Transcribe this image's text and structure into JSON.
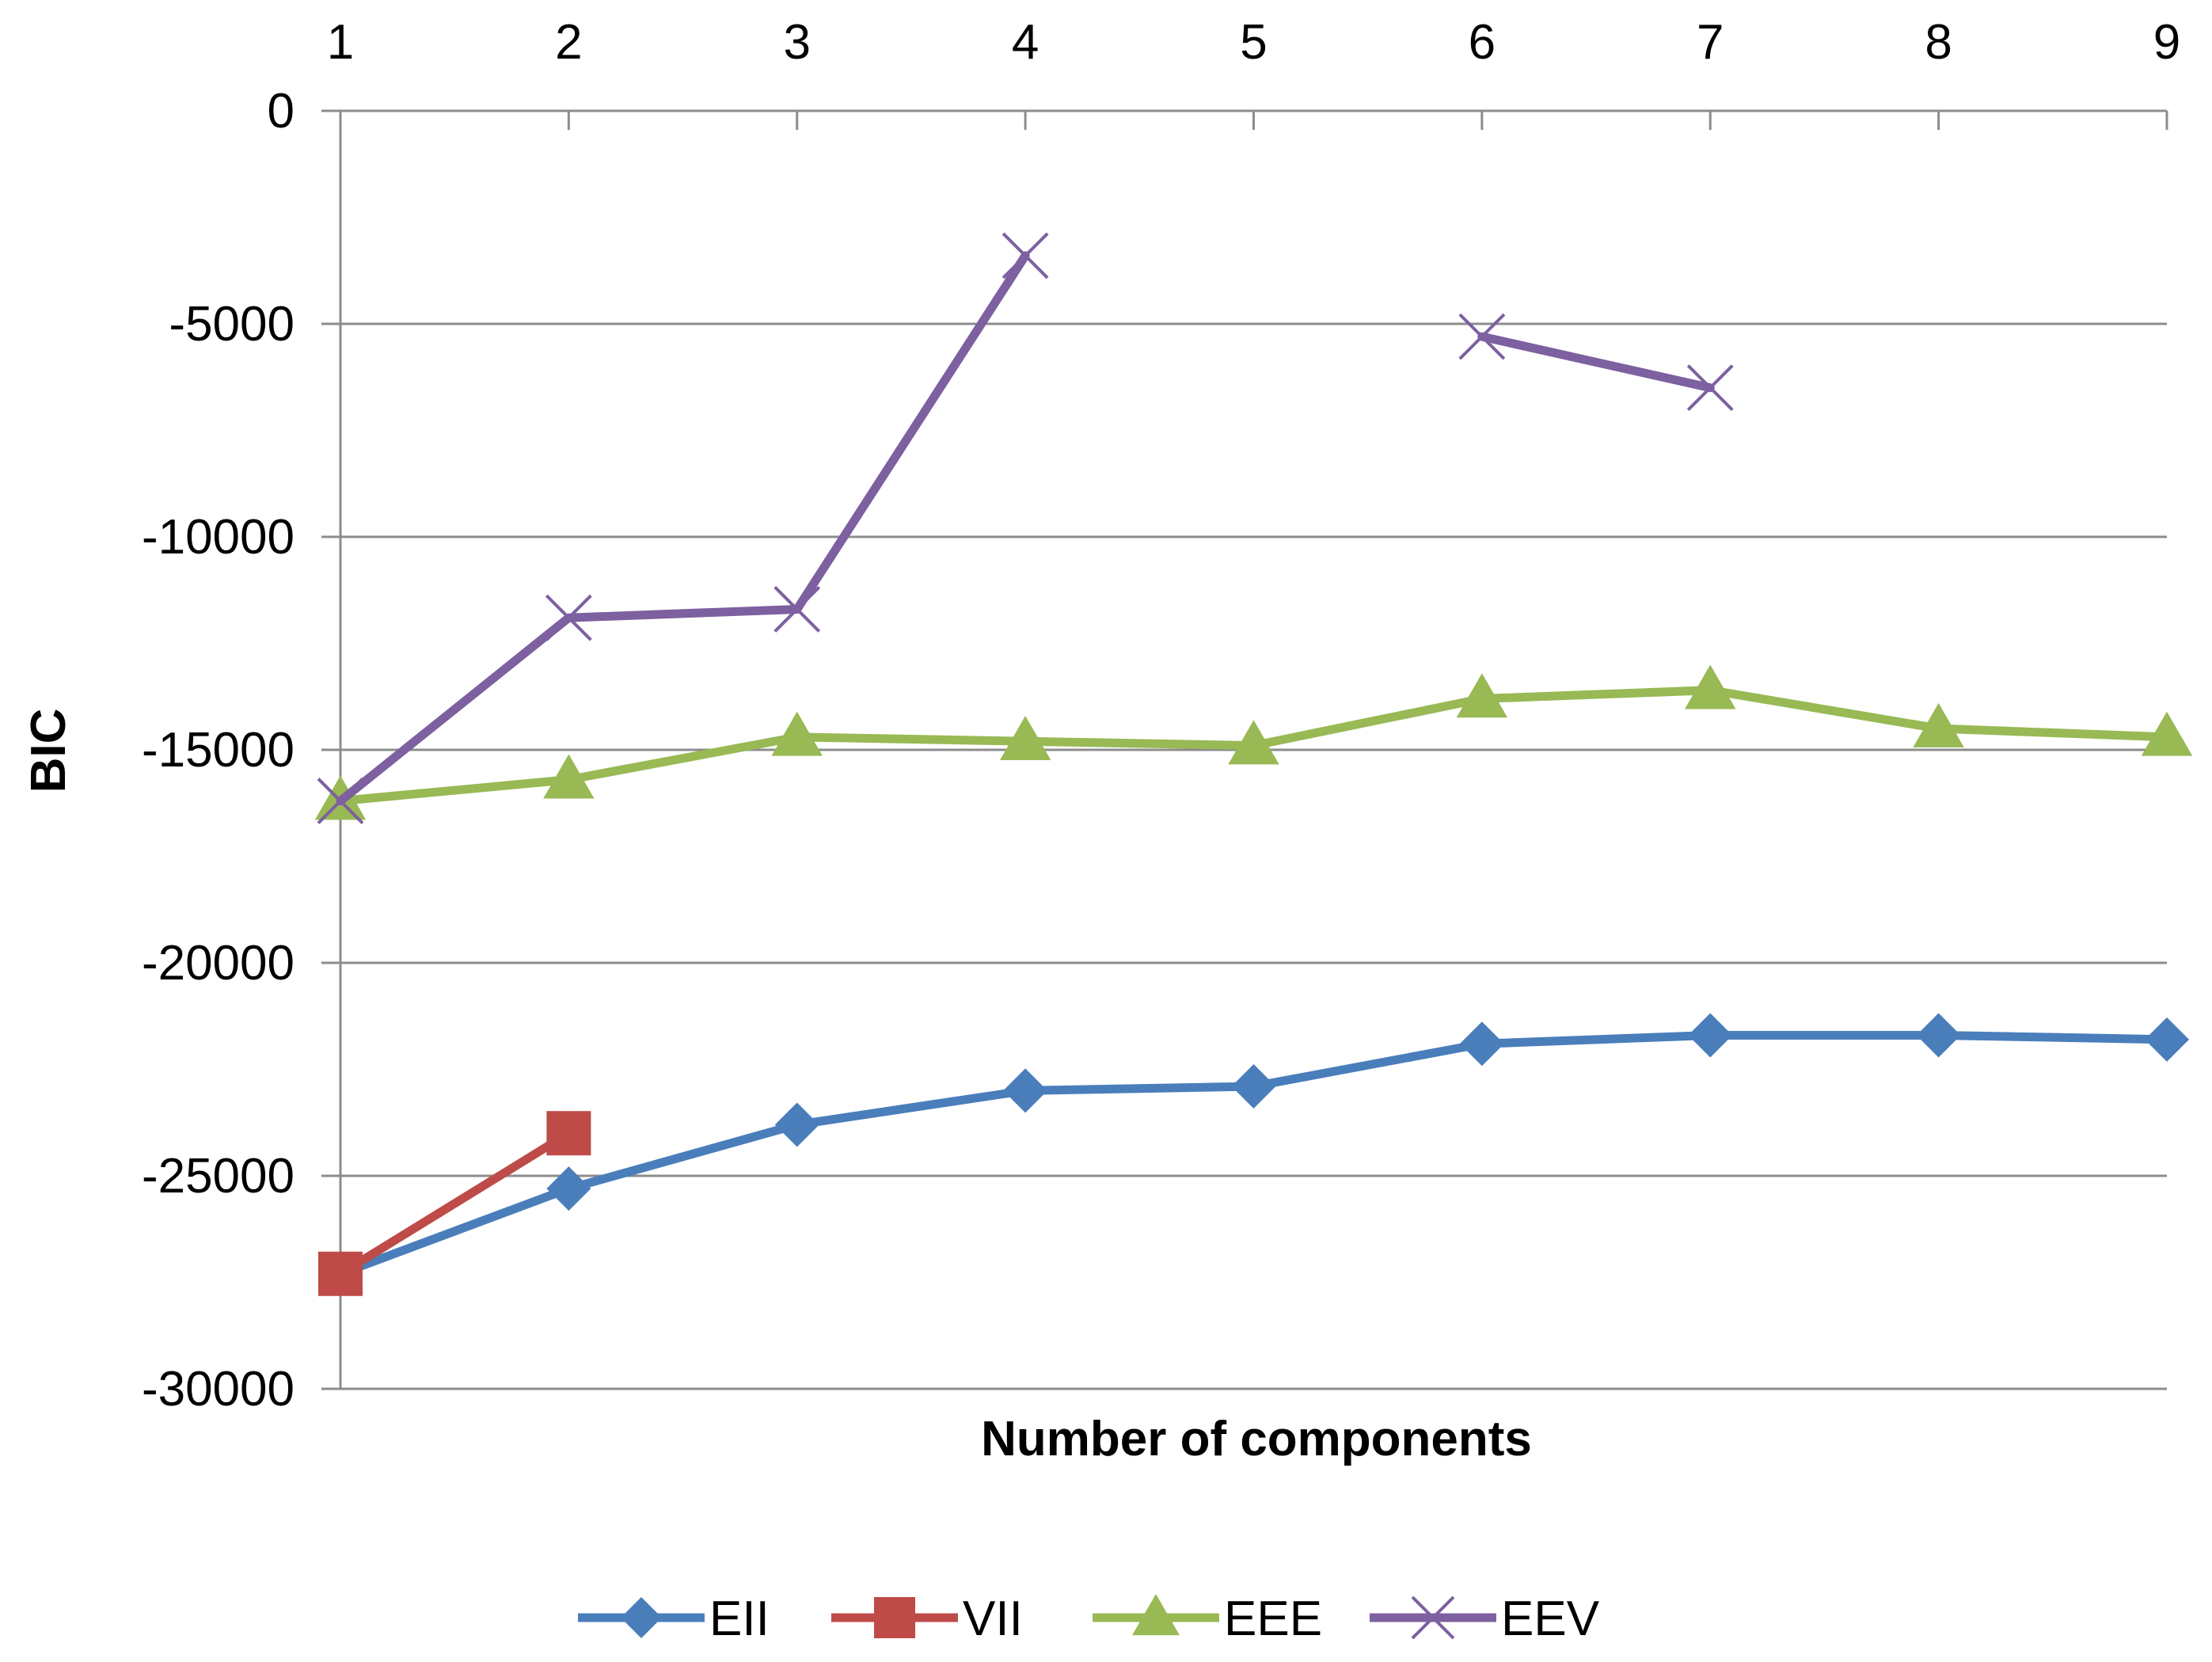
{
  "chart_data": {
    "type": "line",
    "title": "",
    "xlabel": "Number of components",
    "ylabel": "BIC",
    "x": [
      1,
      2,
      3,
      4,
      5,
      6,
      7,
      8,
      9
    ],
    "x_tick_labels": [
      "1",
      "2",
      "3",
      "4",
      "5",
      "6",
      "7",
      "8",
      "9"
    ],
    "xlim": [
      1,
      9
    ],
    "x_axis_position": "top",
    "ylim": [
      -30000,
      0
    ],
    "y_ticks": [
      0,
      -5000,
      -10000,
      -15000,
      -20000,
      -25000,
      -30000
    ],
    "y_tick_labels": [
      "0",
      "-5000",
      "-10000",
      "-15000",
      "-20000",
      "-25000",
      "-30000"
    ],
    "grid": true,
    "legend_position": "bottom",
    "series": [
      {
        "name": "EII",
        "color": "#4a7ebb",
        "marker": "diamond",
        "values": [
          -27300,
          -25300,
          -23800,
          -23000,
          -22900,
          -21900,
          -21700,
          -21700,
          -21800
        ]
      },
      {
        "name": "VII",
        "color": "#be4b48",
        "marker": "square",
        "values": [
          -27300,
          -24000,
          null,
          null,
          null,
          null,
          null,
          null,
          null
        ]
      },
      {
        "name": "EEE",
        "color": "#98b954",
        "marker": "triangle",
        "values": [
          -16200,
          -15700,
          -14700,
          -14800,
          -14900,
          -13800,
          -13600,
          -14500,
          -14700
        ]
      },
      {
        "name": "EEV",
        "color": "#7d60a0",
        "marker": "x",
        "values": [
          -16200,
          -11900,
          -11700,
          -3400,
          null,
          -5300,
          -6500,
          null,
          null
        ]
      }
    ]
  }
}
